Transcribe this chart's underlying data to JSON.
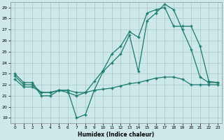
{
  "xlabel": "Humidex (Indice chaleur)",
  "background_color": "#cce8e8",
  "grid_color": "#aac8c8",
  "line_color": "#1a7a6e",
  "xlim": [
    -0.5,
    23.5
  ],
  "ylim": [
    18.5,
    29.5
  ],
  "xticks": [
    0,
    1,
    2,
    3,
    4,
    5,
    6,
    7,
    8,
    9,
    10,
    11,
    12,
    13,
    14,
    15,
    16,
    17,
    18,
    19,
    20,
    21,
    22,
    23
  ],
  "yticks": [
    19,
    20,
    21,
    22,
    23,
    24,
    25,
    26,
    27,
    28,
    29
  ],
  "line1_x": [
    0,
    1,
    2,
    3,
    4,
    5,
    6,
    7,
    8,
    9,
    10,
    11,
    12,
    13,
    14,
    15,
    16,
    17,
    18,
    19,
    20,
    21,
    22,
    23
  ],
  "line1_y": [
    23.0,
    22.2,
    22.2,
    21.0,
    21.0,
    21.5,
    21.5,
    19.0,
    19.3,
    21.5,
    23.2,
    24.0,
    24.8,
    26.5,
    23.2,
    27.8,
    28.5,
    29.3,
    28.8,
    27.0,
    25.2,
    22.7,
    22.2,
    22.2
  ],
  "line2_x": [
    0,
    1,
    2,
    3,
    4,
    5,
    6,
    7,
    8,
    9,
    10,
    11,
    12,
    13,
    14,
    15,
    16,
    17,
    18,
    19,
    20,
    21,
    22,
    23
  ],
  "line2_y": [
    22.8,
    22.0,
    22.0,
    21.3,
    21.3,
    21.5,
    21.3,
    21.0,
    21.3,
    22.3,
    23.3,
    24.8,
    25.5,
    26.8,
    26.3,
    28.5,
    28.8,
    29.0,
    27.3,
    27.3,
    27.3,
    25.5,
    22.3,
    22.2
  ],
  "line3_x": [
    0,
    1,
    2,
    3,
    4,
    5,
    6,
    7,
    8,
    9,
    10,
    11,
    12,
    13,
    14,
    15,
    16,
    17,
    18,
    19,
    20,
    21,
    22,
    23
  ],
  "line3_y": [
    22.5,
    21.8,
    21.8,
    21.3,
    21.3,
    21.5,
    21.5,
    21.3,
    21.3,
    21.5,
    21.6,
    21.7,
    21.9,
    22.1,
    22.2,
    22.4,
    22.6,
    22.7,
    22.7,
    22.5,
    22.0,
    22.0,
    22.0,
    22.0
  ]
}
